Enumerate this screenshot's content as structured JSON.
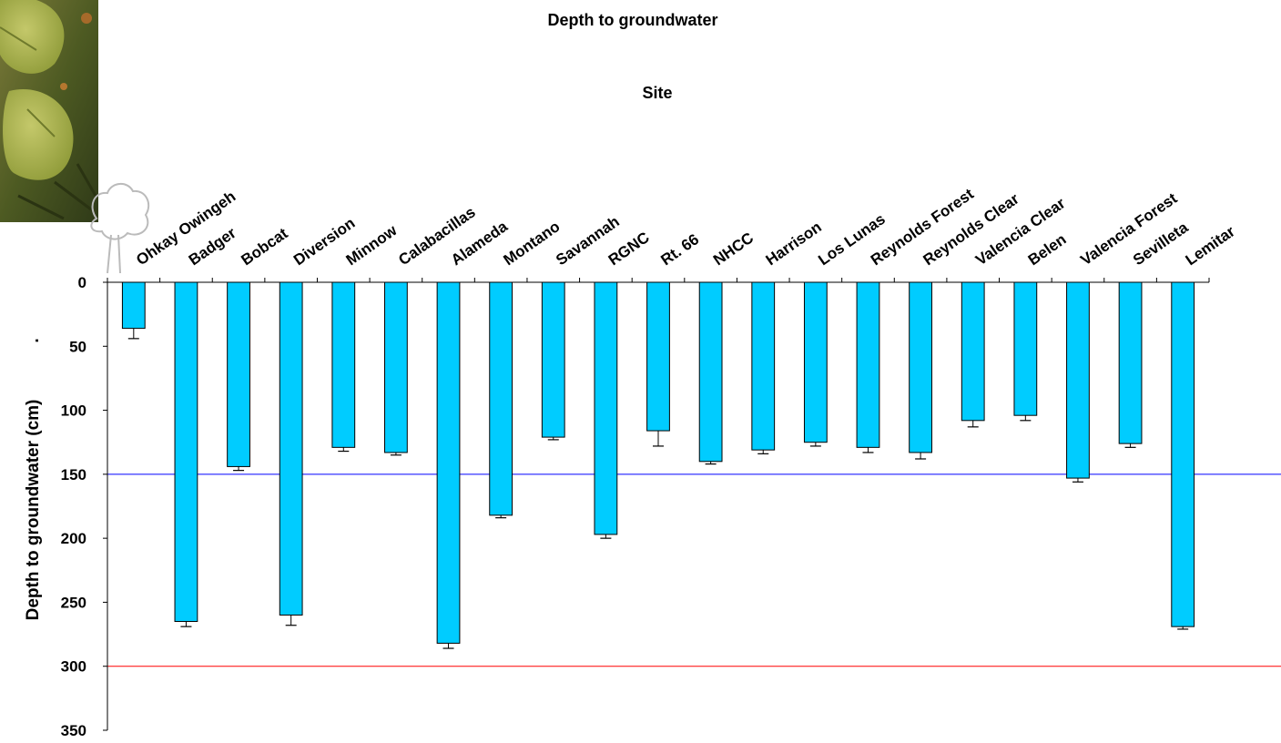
{
  "chart_data": {
    "type": "bar",
    "title": "Depth to groundwater",
    "xlabel": "Site",
    "ylabel": "Depth to groundwater (cm)",
    "ylabel_marker": ".",
    "y_inverted": true,
    "ylim": [
      0,
      350
    ],
    "yticks": [
      0,
      50,
      100,
      150,
      200,
      250,
      300,
      350
    ],
    "categories": [
      "Ohkay Owingeh",
      "Badger",
      "Bobcat",
      "Diversion",
      "Minnow",
      "Calabacillas",
      "Alameda",
      "Montano",
      "Savannah",
      "RGNC",
      "Rt. 66",
      "NHCC",
      "Harrison",
      "Los Lunas",
      "Reynolds Forest",
      "Reynolds Clear",
      "Valencia Clear",
      "Belen",
      "Valencia Forest",
      "Sevilleta",
      "Lemitar"
    ],
    "values": [
      36,
      265,
      144,
      260,
      129,
      133,
      282,
      182,
      121,
      197,
      116,
      140,
      131,
      125,
      129,
      133,
      108,
      104,
      153,
      126,
      269
    ],
    "errors": [
      8,
      4,
      3,
      8,
      3,
      2,
      4,
      2,
      2,
      3,
      12,
      2,
      3,
      3,
      4,
      5,
      5,
      4,
      3,
      3,
      2
    ],
    "reference_lines": [
      {
        "value": 150,
        "color": "#0000ff"
      },
      {
        "value": 300,
        "color": "#ff0000"
      }
    ],
    "bar_color": "#00ccff",
    "bar_edge_color": "#000000",
    "grid": false,
    "legend": "none"
  }
}
